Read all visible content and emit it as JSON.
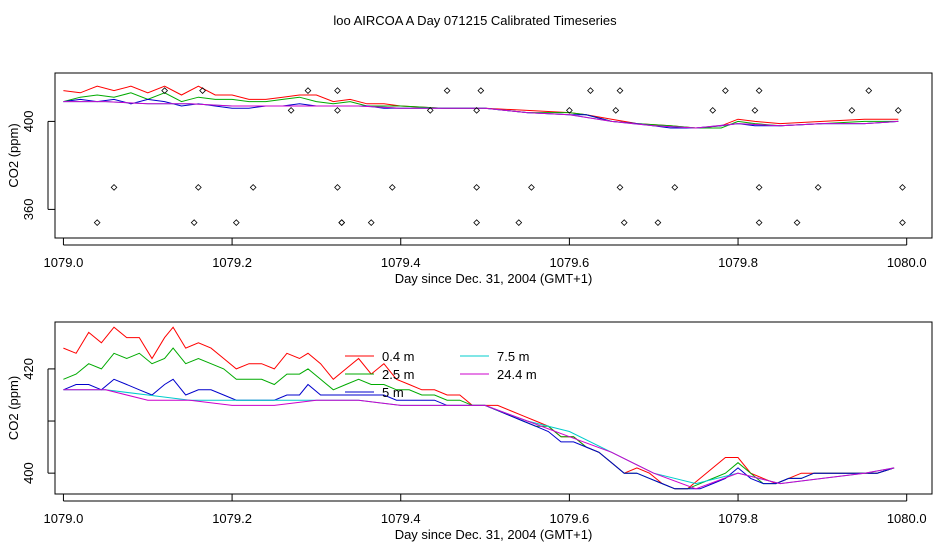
{
  "title": "loo AIRCOA A  Day 071215  Calibrated Timeseries",
  "chart_data": [
    {
      "type": "line",
      "xlabel": "Day since Dec. 31, 2004 (GMT+1)",
      "ylabel": "CO2 (ppm)",
      "xlim": [
        1078.99,
        1080.03
      ],
      "ylim": [
        347,
        422
      ],
      "xticks": [
        1079.0,
        1079.2,
        1079.4,
        1079.6,
        1079.8,
        1080.0
      ],
      "xtick_labels": [
        "1079.0",
        "1079.2",
        "1079.4",
        "1079.6",
        "1079.8",
        "1080.0"
      ],
      "yticks": [
        360,
        400
      ],
      "ytick_labels": [
        "360",
        "400"
      ],
      "grid": false,
      "series": [
        {
          "color": "#ff0000",
          "x": [
            1079.0,
            1079.02,
            1079.04,
            1079.06,
            1079.08,
            1079.1,
            1079.12,
            1079.14,
            1079.16,
            1079.18,
            1079.2,
            1079.22,
            1079.24,
            1079.26,
            1079.28,
            1079.3,
            1079.32,
            1079.34,
            1079.36,
            1079.38,
            1079.4,
            1079.45,
            1079.5,
            1079.55,
            1079.6,
            1079.62,
            1079.65,
            1079.68,
            1079.72,
            1079.75,
            1079.78,
            1079.8,
            1079.82,
            1079.85,
            1079.9,
            1079.95,
            1079.99
          ],
          "y": [
            414,
            413,
            416,
            414,
            416,
            413,
            416,
            412,
            416,
            412,
            412,
            410,
            410,
            411,
            412,
            412,
            409,
            410,
            408,
            408,
            407,
            406,
            406,
            405,
            404,
            403,
            401,
            399,
            398,
            397,
            398,
            401,
            400,
            399,
            400,
            401,
            401
          ]
        },
        {
          "color": "#00aa00",
          "x": [
            1079.0,
            1079.02,
            1079.04,
            1079.06,
            1079.08,
            1079.1,
            1079.12,
            1079.14,
            1079.16,
            1079.18,
            1079.2,
            1079.22,
            1079.24,
            1079.26,
            1079.28,
            1079.3,
            1079.32,
            1079.34,
            1079.36,
            1079.38,
            1079.4,
            1079.45,
            1079.5,
            1079.55,
            1079.6,
            1079.62,
            1079.65,
            1079.68,
            1079.72,
            1079.75,
            1079.78,
            1079.8,
            1079.82,
            1079.85,
            1079.9,
            1079.95,
            1079.99
          ],
          "y": [
            409,
            411,
            412,
            411,
            413,
            410,
            413,
            409,
            411,
            410,
            410,
            409,
            409,
            410,
            411,
            409,
            408,
            409,
            407,
            407,
            407,
            406,
            406,
            404,
            404,
            403,
            400,
            399,
            398,
            397,
            397,
            400,
            399,
            398,
            399,
            400,
            400
          ]
        },
        {
          "color": "#0000cc",
          "x": [
            1079.0,
            1079.02,
            1079.04,
            1079.06,
            1079.08,
            1079.1,
            1079.12,
            1079.14,
            1079.16,
            1079.18,
            1079.2,
            1079.22,
            1079.24,
            1079.26,
            1079.28,
            1079.3,
            1079.32,
            1079.34,
            1079.36,
            1079.38,
            1079.4,
            1079.45,
            1079.5,
            1079.55,
            1079.6,
            1079.62,
            1079.65,
            1079.68,
            1079.72,
            1079.75,
            1079.78,
            1079.8,
            1079.82,
            1079.85,
            1079.9,
            1079.95,
            1079.99
          ],
          "y": [
            409,
            410,
            409,
            410,
            408,
            410,
            409,
            407,
            408,
            407,
            406,
            406,
            407,
            407,
            408,
            407,
            407,
            407,
            407,
            406,
            406,
            406,
            406,
            404,
            403,
            403,
            400,
            399,
            397,
            397,
            398,
            399,
            398,
            398,
            399,
            399,
            400
          ]
        },
        {
          "color": "#00cccc",
          "x": [
            1079.0,
            1079.05,
            1079.1,
            1079.15,
            1079.2,
            1079.25,
            1079.3,
            1079.35,
            1079.4,
            1079.45,
            1079.5,
            1079.55,
            1079.6,
            1079.65,
            1079.7,
            1079.75,
            1079.8,
            1079.85,
            1079.9,
            1079.95,
            1079.99
          ],
          "y": [
            409,
            409,
            408,
            408,
            407,
            407,
            407,
            407,
            406,
            406,
            406,
            404,
            403,
            400,
            398,
            397,
            399,
            398,
            399,
            399,
            400
          ]
        },
        {
          "color": "#cc00cc",
          "x": [
            1079.0,
            1079.05,
            1079.1,
            1079.15,
            1079.2,
            1079.25,
            1079.3,
            1079.35,
            1079.4,
            1079.45,
            1079.5,
            1079.55,
            1079.6,
            1079.65,
            1079.7,
            1079.75,
            1079.8,
            1079.85,
            1079.9,
            1079.95,
            1079.99
          ],
          "y": [
            409,
            409,
            408,
            408,
            407,
            407,
            407,
            407,
            406,
            406,
            406,
            404,
            403,
            400,
            398,
            397,
            399,
            398,
            399,
            399,
            400
          ]
        }
      ],
      "points": {
        "type": "scatter",
        "marker": "open-diamond",
        "x": [
          1079.04,
          1079.06,
          1079.12,
          1079.155,
          1079.16,
          1079.165,
          1079.205,
          1079.225,
          1079.27,
          1079.29,
          1079.325,
          1079.325,
          1079.325,
          1079.33,
          1079.33,
          1079.365,
          1079.39,
          1079.435,
          1079.455,
          1079.49,
          1079.49,
          1079.49,
          1079.495,
          1079.54,
          1079.555,
          1079.6,
          1079.625,
          1079.655,
          1079.66,
          1079.66,
          1079.665,
          1079.705,
          1079.725,
          1079.77,
          1079.785,
          1079.82,
          1079.825,
          1079.825,
          1079.825,
          1079.87,
          1079.895,
          1079.935,
          1079.955,
          1079.99,
          1079.995,
          1079.995
        ],
        "y": [
          354,
          370,
          414,
          354,
          370,
          414,
          354,
          370,
          405,
          414,
          405,
          414,
          370,
          354,
          354,
          354,
          370,
          405,
          414,
          354,
          405,
          370,
          414,
          354,
          370,
          405,
          414,
          405,
          414,
          370,
          354,
          354,
          370,
          405,
          414,
          405,
          354,
          370,
          414,
          354,
          370,
          405,
          414,
          405,
          370,
          354
        ]
      }
    },
    {
      "type": "line",
      "xlabel": "Day since Dec. 31, 2004 (GMT+1)",
      "ylabel": "CO2 (ppm)",
      "xlim": [
        1078.99,
        1080.03
      ],
      "ylim": [
        396,
        429
      ],
      "xticks": [
        1079.0,
        1079.2,
        1079.4,
        1079.6,
        1079.8,
        1080.0
      ],
      "xtick_labels": [
        "1079.0",
        "1079.2",
        "1079.4",
        "1079.6",
        "1079.8",
        "1080.0"
      ],
      "yticks": [
        400,
        410,
        420
      ],
      "ytick_labels": [
        "400",
        "",
        "420"
      ],
      "grid": false,
      "legend_position": "top-center",
      "series": [
        {
          "name": "0.4 m",
          "color": "#ff0000",
          "x": [
            1079.0,
            1079.015,
            1079.03,
            1079.045,
            1079.06,
            1079.075,
            1079.09,
            1079.105,
            1079.12,
            1079.13,
            1079.145,
            1079.16,
            1079.175,
            1079.19,
            1079.205,
            1079.22,
            1079.235,
            1079.25,
            1079.265,
            1079.28,
            1079.29,
            1079.305,
            1079.32,
            1079.335,
            1079.35,
            1079.365,
            1079.38,
            1079.395,
            1079.41,
            1079.425,
            1079.44,
            1079.455,
            1079.47,
            1079.485,
            1079.5,
            1079.515,
            1079.53,
            1079.545,
            1079.56,
            1079.575,
            1079.59,
            1079.605,
            1079.62,
            1079.635,
            1079.65,
            1079.665,
            1079.68,
            1079.695,
            1079.71,
            1079.725,
            1079.74,
            1079.755,
            1079.77,
            1079.785,
            1079.8,
            1079.815,
            1079.83,
            1079.845,
            1079.86,
            1079.875,
            1079.89,
            1079.905,
            1079.92,
            1079.935,
            1079.95,
            1079.965,
            1079.985
          ],
          "y": [
            424,
            423,
            427,
            425,
            428,
            426,
            426,
            422,
            426,
            428,
            424,
            425,
            424,
            422,
            420,
            421,
            421,
            420,
            423,
            422,
            423,
            421,
            418,
            420,
            422,
            419,
            421,
            418,
            417,
            416,
            416,
            415,
            415,
            413,
            413,
            413,
            412,
            411,
            410,
            409,
            407,
            407,
            405,
            404,
            402,
            400,
            401,
            400,
            398,
            397,
            397,
            399,
            401,
            403,
            403,
            400,
            399,
            398,
            399,
            400,
            400,
            400,
            400,
            400,
            400,
            400,
            401
          ]
        },
        {
          "name": "2.5 m",
          "color": "#00aa00",
          "x": [
            1079.0,
            1079.015,
            1079.03,
            1079.045,
            1079.06,
            1079.075,
            1079.09,
            1079.105,
            1079.12,
            1079.13,
            1079.145,
            1079.16,
            1079.175,
            1079.19,
            1079.205,
            1079.22,
            1079.235,
            1079.25,
            1079.265,
            1079.28,
            1079.29,
            1079.305,
            1079.32,
            1079.335,
            1079.35,
            1079.365,
            1079.38,
            1079.395,
            1079.41,
            1079.425,
            1079.44,
            1079.455,
            1079.47,
            1079.485,
            1079.5,
            1079.515,
            1079.53,
            1079.545,
            1079.56,
            1079.575,
            1079.59,
            1079.605,
            1079.62,
            1079.635,
            1079.65,
            1079.665,
            1079.68,
            1079.695,
            1079.71,
            1079.725,
            1079.74,
            1079.755,
            1079.77,
            1079.785,
            1079.8,
            1079.815,
            1079.83,
            1079.845,
            1079.86,
            1079.875,
            1079.89,
            1079.905,
            1079.92,
            1079.935,
            1079.95,
            1079.965,
            1079.985
          ],
          "y": [
            418,
            419,
            421,
            420,
            423,
            422,
            423,
            421,
            422,
            424,
            421,
            422,
            421,
            420,
            418,
            418,
            418,
            417,
            419,
            419,
            420,
            418,
            416,
            417,
            418,
            417,
            417,
            416,
            416,
            415,
            415,
            414,
            414,
            413,
            413,
            412,
            411,
            410,
            409,
            409,
            407,
            407,
            405,
            404,
            402,
            400,
            400,
            399,
            398,
            397,
            397,
            398,
            399,
            400,
            402,
            400,
            398,
            398,
            399,
            399,
            400,
            400,
            400,
            400,
            400,
            400,
            401
          ]
        },
        {
          "name": "5 m",
          "color": "#0000cc",
          "x": [
            1079.0,
            1079.015,
            1079.03,
            1079.045,
            1079.06,
            1079.075,
            1079.09,
            1079.105,
            1079.12,
            1079.13,
            1079.145,
            1079.16,
            1079.175,
            1079.19,
            1079.205,
            1079.22,
            1079.235,
            1079.25,
            1079.265,
            1079.28,
            1079.29,
            1079.305,
            1079.32,
            1079.335,
            1079.35,
            1079.365,
            1079.38,
            1079.395,
            1079.41,
            1079.425,
            1079.44,
            1079.455,
            1079.47,
            1079.485,
            1079.5,
            1079.515,
            1079.53,
            1079.545,
            1079.56,
            1079.575,
            1079.59,
            1079.605,
            1079.62,
            1079.635,
            1079.65,
            1079.665,
            1079.68,
            1079.695,
            1079.71,
            1079.725,
            1079.74,
            1079.755,
            1079.77,
            1079.785,
            1079.8,
            1079.815,
            1079.83,
            1079.845,
            1079.86,
            1079.875,
            1079.89,
            1079.905,
            1079.92,
            1079.935,
            1079.95,
            1079.965,
            1079.985
          ],
          "y": [
            416,
            417,
            417,
            416,
            418,
            417,
            416,
            415,
            417,
            418,
            415,
            416,
            416,
            415,
            414,
            414,
            414,
            414,
            415,
            415,
            417,
            415,
            415,
            415,
            415,
            415,
            415,
            414,
            414,
            414,
            414,
            413,
            413,
            413,
            413,
            412,
            411,
            410,
            409,
            408,
            406,
            406,
            405,
            404,
            402,
            400,
            400,
            399,
            398,
            397,
            397,
            397,
            398,
            399,
            401,
            399,
            398,
            398,
            399,
            399,
            400,
            400,
            400,
            400,
            400,
            400,
            401
          ]
        },
        {
          "name": "7.5 m",
          "color": "#00cccc",
          "x": [
            1079.0,
            1079.05,
            1079.1,
            1079.15,
            1079.2,
            1079.25,
            1079.3,
            1079.35,
            1079.4,
            1079.45,
            1079.5,
            1079.55,
            1079.6,
            1079.65,
            1079.7,
            1079.75,
            1079.8,
            1079.85,
            1079.9,
            1079.95,
            1079.985
          ],
          "y": [
            416,
            416,
            415,
            414,
            414,
            414,
            414,
            414,
            413,
            413,
            413,
            410,
            408,
            404,
            400,
            398,
            400,
            398,
            399,
            400,
            401
          ]
        },
        {
          "name": "24.4 m",
          "color": "#cc00cc",
          "x": [
            1079.0,
            1079.05,
            1079.1,
            1079.15,
            1079.2,
            1079.25,
            1079.3,
            1079.35,
            1079.4,
            1079.45,
            1079.5,
            1079.55,
            1079.6,
            1079.65,
            1079.7,
            1079.75,
            1079.8,
            1079.85,
            1079.9,
            1079.95,
            1079.985
          ],
          "y": [
            416,
            416,
            414,
            414,
            413,
            413,
            414,
            414,
            413,
            413,
            413,
            410,
            407,
            404,
            400,
            397,
            400,
            398,
            399,
            400,
            401
          ]
        }
      ]
    }
  ]
}
